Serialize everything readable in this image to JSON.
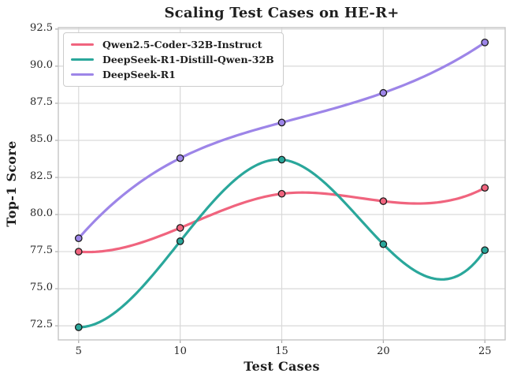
{
  "figure": {
    "title": "Scaling Test Cases on HE-R+",
    "xlabel": "Test Cases",
    "ylabel": "Top-1 Score"
  },
  "chart_data": {
    "type": "line",
    "title": "Scaling Test Cases on HE-R+",
    "xlabel": "Test Cases",
    "ylabel": "Top-1 Score",
    "x": [
      5,
      10,
      15,
      20,
      25
    ],
    "series": [
      {
        "name": "Qwen2.5-Coder-32B-Instruct",
        "color": "#F0647E",
        "values": [
          77.5,
          79.1,
          81.4,
          80.9,
          81.8
        ]
      },
      {
        "name": "DeepSeek-R1-Distill-Qwen-32B",
        "color": "#2AA79B",
        "values": [
          72.4,
          78.2,
          83.7,
          78.0,
          77.6
        ]
      },
      {
        "name": "DeepSeek-R1",
        "color": "#9D85E8",
        "values": [
          78.4,
          83.8,
          86.2,
          88.2,
          91.6
        ]
      }
    ],
    "xticks": [
      "5",
      "10",
      "15",
      "20",
      "25"
    ],
    "yticks": [
      "72.5",
      "75.0",
      "77.5",
      "80.0",
      "82.5",
      "85.0",
      "87.5",
      "90.0",
      "92.5"
    ],
    "xlim": [
      4.0,
      26.0
    ],
    "ylim": [
      71.55,
      92.6
    ],
    "grid": true,
    "legend_position": "upper left",
    "line_style": "smooth-cubic-spline",
    "marker": "circle",
    "marker_edge_color": "#1b1b1b",
    "grid_color": "#d9d9d9",
    "spine_color": "#c4c4c4",
    "tick_color": "#aaaaaa",
    "background": "#ffffff"
  }
}
